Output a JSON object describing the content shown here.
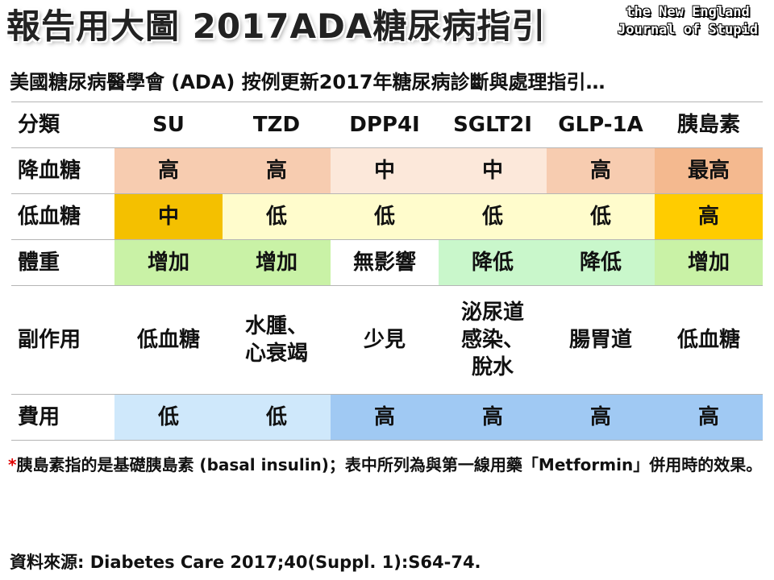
{
  "title": "報告用大圖 2017ADA糖尿病指引",
  "logo": {
    "line1": "the New England",
    "line2": "Journal of Stupid"
  },
  "subtitle": "美國糖尿病醫學會 (ADA) 按例更新2017年糖尿病診斷與處理指引…",
  "table": {
    "header": [
      "分類",
      "SU",
      "TZD",
      "DPP4I",
      "SGLT2I",
      "GLP-1A",
      "胰島素"
    ],
    "rows": [
      {
        "label": "降血糖",
        "cells": [
          "高",
          "高",
          "中",
          "中",
          "高",
          "最高"
        ]
      },
      {
        "label": "低血糖",
        "cells": [
          "中",
          "低",
          "低",
          "低",
          "低",
          "高"
        ]
      },
      {
        "label": "體重",
        "cells": [
          "增加",
          "增加",
          "無影響",
          "降低",
          "降低",
          "增加"
        ]
      },
      {
        "label": "副作用",
        "cells": [
          [
            "低血糖"
          ],
          [
            "水腫、",
            "心衰竭"
          ],
          [
            "少見"
          ],
          [
            "泌尿道",
            "感染、",
            "脫水"
          ],
          [
            "腸胃道"
          ],
          [
            "低血糖"
          ]
        ]
      },
      {
        "label": "費用",
        "cells": [
          "低",
          "低",
          "高",
          "高",
          "高",
          "高"
        ]
      }
    ],
    "colors": {
      "peach_high": "#f7ccb0",
      "peach_mid": "#fce8da",
      "peach_top": "#f4b98f",
      "orange": "#f4c000",
      "light_yellow": "#fffccc",
      "yellow": "#ffcc00",
      "green": "#c9f2a6",
      "light_green": "#c9f7cb",
      "light_blue": "#cfe8fb",
      "blue": "#a0c9f3"
    }
  },
  "footnote": {
    "marker": "*",
    "text": "胰島素指的是基礎胰島素 (basal insulin)；表中所列為與第一線用藥「Metformin」併用時的效果。"
  },
  "source": "資料來源: Diabetes Care 2017;40(Suppl. 1):S64-74."
}
